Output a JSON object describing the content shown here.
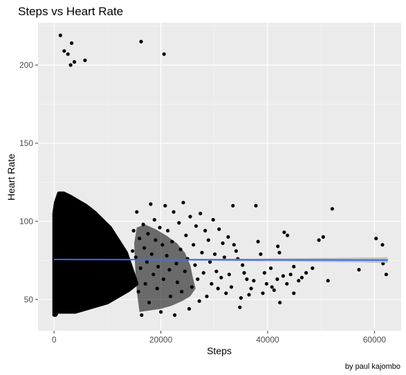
{
  "chart_data": {
    "type": "scatter",
    "title": "Steps vs Heart Rate",
    "xlabel": "Steps",
    "ylabel": "Heart Rate",
    "caption": "by paul kajombo",
    "xlim": [
      -3000,
      65000
    ],
    "ylim": [
      30,
      227
    ],
    "xticks": [
      0,
      20000,
      40000,
      60000
    ],
    "xtick_labels": [
      "0",
      "20000",
      "40000",
      "60000"
    ],
    "yticks": [
      50,
      100,
      150,
      200
    ],
    "ytick_labels": [
      "50",
      "100",
      "150",
      "200"
    ],
    "grid": true,
    "background": "#ebebeb",
    "point_color": "#000000",
    "trend": {
      "method": "linear",
      "color": "#3366ff",
      "band_color": "#b3b3b3",
      "x": [
        0,
        62500
      ],
      "y": [
        75.6,
        75.2
      ],
      "band_half_width": [
        0.3,
        1.8
      ]
    },
    "outliers": [
      [
        1200,
        219
      ],
      [
        2600,
        207
      ],
      [
        1900,
        209
      ],
      [
        3300,
        214
      ],
      [
        3100,
        200
      ],
      [
        3800,
        202
      ],
      [
        5800,
        203
      ],
      [
        16300,
        215
      ],
      [
        20600,
        207
      ],
      [
        300,
        97
      ],
      [
        900,
        117
      ]
    ],
    "points": [
      [
        61500,
        85
      ],
      [
        60300,
        89
      ],
      [
        62200,
        66
      ],
      [
        61600,
        73
      ],
      [
        57100,
        69
      ],
      [
        52100,
        108
      ],
      [
        50400,
        90
      ],
      [
        49600,
        88
      ],
      [
        51300,
        62
      ],
      [
        48400,
        70
      ],
      [
        47200,
        67
      ],
      [
        46400,
        64
      ],
      [
        45800,
        62
      ],
      [
        44900,
        71
      ],
      [
        44300,
        66
      ],
      [
        44900,
        54
      ],
      [
        43600,
        60
      ],
      [
        42900,
        65
      ],
      [
        42300,
        48
      ],
      [
        41800,
        63
      ],
      [
        41200,
        56
      ],
      [
        43100,
        93
      ],
      [
        43700,
        91
      ],
      [
        42200,
        80
      ],
      [
        41900,
        84
      ],
      [
        40800,
        58
      ],
      [
        40600,
        70
      ],
      [
        39800,
        60
      ],
      [
        39400,
        67
      ],
      [
        39100,
        54
      ],
      [
        38700,
        79
      ],
      [
        38200,
        87
      ],
      [
        37800,
        110
      ],
      [
        37400,
        62
      ],
      [
        36900,
        57
      ],
      [
        36500,
        53
      ],
      [
        36100,
        63
      ],
      [
        35600,
        67
      ],
      [
        35300,
        72
      ],
      [
        35000,
        51
      ],
      [
        34800,
        45
      ],
      [
        34400,
        76
      ],
      [
        34100,
        81
      ],
      [
        33700,
        85
      ],
      [
        33500,
        110
      ],
      [
        33200,
        58
      ],
      [
        32800,
        66
      ],
      [
        32600,
        90
      ],
      [
        32200,
        54
      ],
      [
        31900,
        77
      ],
      [
        31600,
        86
      ],
      [
        31300,
        64
      ],
      [
        30900,
        95
      ],
      [
        30700,
        57
      ],
      [
        30400,
        68
      ],
      [
        30100,
        79
      ],
      [
        29800,
        101
      ],
      [
        29500,
        60
      ],
      [
        29200,
        74
      ],
      [
        28900,
        88
      ],
      [
        28600,
        52
      ],
      [
        28300,
        94
      ],
      [
        28000,
        67
      ],
      [
        27700,
        80
      ],
      [
        27400,
        105
      ],
      [
        27200,
        49
      ],
      [
        26900,
        63
      ],
      [
        26600,
        97
      ],
      [
        26400,
        72
      ],
      [
        26100,
        85
      ],
      [
        25800,
        58
      ],
      [
        25500,
        103
      ],
      [
        25300,
        44
      ],
      [
        25000,
        76
      ],
      [
        24700,
        91
      ],
      [
        24500,
        68
      ],
      [
        24200,
        112
      ],
      [
        23900,
        55
      ],
      [
        23700,
        82
      ],
      [
        23400,
        99
      ],
      [
        23100,
        61
      ],
      [
        22900,
        73
      ],
      [
        22600,
        40
      ],
      [
        22400,
        106
      ],
      [
        22100,
        87
      ],
      [
        21800,
        52
      ],
      [
        21600,
        69
      ],
      [
        21300,
        94
      ],
      [
        21100,
        78
      ],
      [
        20800,
        110
      ],
      [
        20500,
        63
      ],
      [
        20300,
        85
      ],
      [
        20000,
        42
      ],
      [
        19800,
        96
      ],
      [
        19500,
        71
      ],
      [
        19300,
        57
      ],
      [
        19000,
        88
      ],
      [
        18800,
        101
      ],
      [
        18600,
        66
      ],
      [
        18300,
        79
      ],
      [
        18100,
        111
      ],
      [
        17800,
        48
      ],
      [
        17600,
        92
      ],
      [
        17400,
        74
      ],
      [
        17100,
        60
      ],
      [
        16900,
        83
      ],
      [
        16700,
        98
      ],
      [
        16400,
        40
      ],
      [
        16200,
        70
      ],
      [
        16000,
        89
      ],
      [
        15800,
        55
      ],
      [
        15500,
        106
      ],
      [
        15300,
        77
      ],
      [
        15100,
        64
      ],
      [
        14900,
        94
      ],
      [
        14700,
        81
      ]
    ]
  }
}
